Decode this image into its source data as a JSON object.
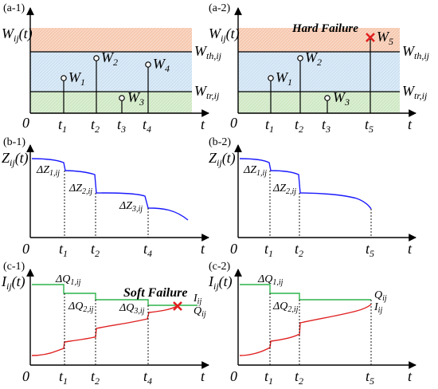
{
  "colors": {
    "hard_band": "#f6c9b0",
    "mid_band": "#cfe3f3",
    "low_band": "#cfe8c4",
    "degradation_curve": "#1a1aff",
    "threshold_line": "#2db34a",
    "increment_curve": "#e02020",
    "failure_marker": "#e02020",
    "axis": "#000000"
  },
  "panels": {
    "a1": {
      "tag": "(a-1)",
      "ylabel": "W_ij(t)",
      "right_labels": {
        "upper": "W_th,ij",
        "lower": "W_tr,ij"
      },
      "shocks": [
        "W1",
        "W2",
        "W3",
        "W4"
      ],
      "ticks": [
        "0",
        "t1",
        "t2",
        "t3",
        "t4",
        "t"
      ]
    },
    "a2": {
      "tag": "(a-2)",
      "ylabel": "W_ij(t)",
      "failure_label": "Hard Failure",
      "right_labels": {
        "upper": "W_th,ij",
        "lower": "W_tr,ij"
      },
      "shocks": [
        "W1",
        "W2",
        "W3",
        "W5"
      ],
      "ticks": [
        "0",
        "t1",
        "t2",
        "t3",
        "t5",
        "t"
      ]
    },
    "b1": {
      "tag": "(b-1)",
      "ylabel": "Z_ij(t)",
      "jumps": [
        "ΔZ1,ij",
        "ΔZ2,ij",
        "ΔZ3,ij"
      ],
      "ticks": [
        "0",
        "t1",
        "t2",
        "t4",
        "t"
      ]
    },
    "b2": {
      "tag": "(b-2)",
      "ylabel": "Z_ij(t)",
      "jumps": [
        "ΔZ1,ij",
        "ΔZ2,ij"
      ],
      "ticks": [
        "0",
        "t1",
        "t2",
        "t5",
        "t"
      ]
    },
    "c1": {
      "tag": "(c-1)",
      "ylabel": "I_ij(t)",
      "failure_label": "Soft Failure",
      "jumps": [
        "ΔQ1,ij",
        "ΔQ2,ij",
        "ΔQ3,ij"
      ],
      "curve_labels": {
        "upper": "Iij",
        "lower": "Qij"
      },
      "ticks": [
        "0",
        "t1",
        "t2",
        "t4",
        "t"
      ]
    },
    "c2": {
      "tag": "(c-2)",
      "ylabel": "I_ij(t)",
      "jumps": [
        "ΔQ1,ij",
        "ΔQ2,ij"
      ],
      "curve_labels": {
        "upper": "Qij",
        "lower": "Iij"
      },
      "ticks": [
        "0",
        "t1",
        "t2",
        "t5",
        "t"
      ]
    }
  }
}
